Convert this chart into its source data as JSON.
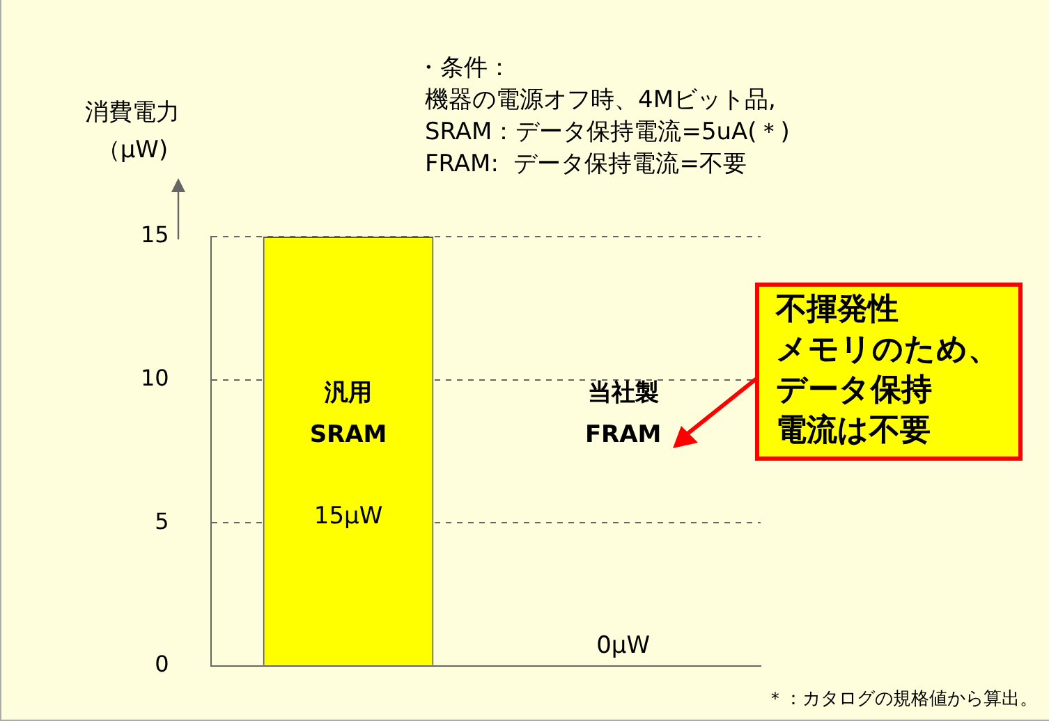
{
  "chart_data": {
    "type": "bar",
    "ylabel": "消費電力（μW)",
    "categories": [
      "汎用\nSRAM",
      "当社製\nFRAM"
    ],
    "values": [
      15,
      0
    ],
    "color": "#ffff00",
    "value_labels": [
      "15μW",
      "0μW"
    ],
    "ylim": [
      0,
      15
    ],
    "yticks": [
      0,
      5,
      10,
      15
    ],
    "grid": "y",
    "legend": false,
    "annotations": [
      "・条件：",
      "機器の電源オフ時、4Mビット品,",
      "SRAM：データ保持電流=5uA(＊)",
      "FRAM:  データ保持電流=不要",
      "不揮発性",
      "メモリのため、",
      "データ保持",
      "電流は不要",
      "＊：カタログの規格値から算出。"
    ]
  }
}
